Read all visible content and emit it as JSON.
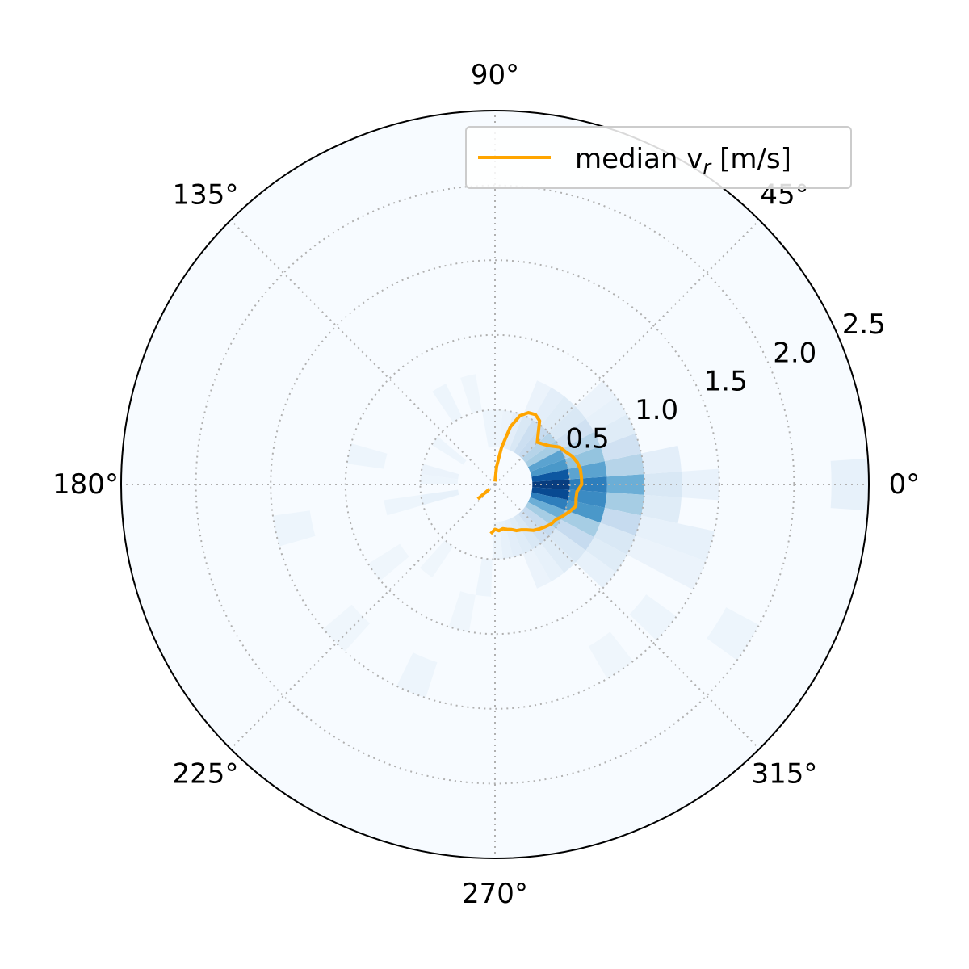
{
  "chart_data": {
    "type": "heatmap",
    "projection": "polar",
    "angle_ticks": [
      "0°",
      "45°",
      "90°",
      "135°",
      "180°",
      "225°",
      "270°",
      "315°"
    ],
    "angle_tick_values_deg": [
      0,
      45,
      90,
      135,
      180,
      225,
      270,
      315
    ],
    "radial_ticks": [
      "0.5",
      "1.0",
      "1.5",
      "2.0",
      "2.5"
    ],
    "radial_tick_values": [
      0.5,
      1.0,
      1.5,
      2.0,
      2.5
    ],
    "rlim": [
      0,
      2.5
    ],
    "grid": true,
    "legend": {
      "placement": "top-right",
      "entries": [
        "median v_r [m/s]"
      ]
    },
    "colormap": "Blues",
    "colors": {
      "background": "#f7fbff",
      "median_line": "#ffa500",
      "grid": "#b0b0b0"
    },
    "histogram_cells": [
      {
        "t0": -4,
        "t1": 4,
        "r0": 0.25,
        "r1": 0.5,
        "v": 0.95
      },
      {
        "t0": -4,
        "t1": 4,
        "r0": 0.5,
        "r1": 0.75,
        "v": 0.7
      },
      {
        "t0": -4,
        "t1": 4,
        "r0": 0.75,
        "r1": 1.0,
        "v": 0.5
      },
      {
        "t0": -4,
        "t1": 4,
        "r0": 1.0,
        "r1": 1.25,
        "v": 0.15
      },
      {
        "t0": 4,
        "t1": 12,
        "r0": 0.25,
        "r1": 0.5,
        "v": 0.85
      },
      {
        "t0": 4,
        "t1": 12,
        "r0": 0.5,
        "r1": 0.75,
        "v": 0.55
      },
      {
        "t0": 4,
        "t1": 12,
        "r0": 0.75,
        "r1": 1.0,
        "v": 0.3
      },
      {
        "t0": 4,
        "t1": 12,
        "r0": 1.0,
        "r1": 1.25,
        "v": 0.1
      },
      {
        "t0": 12,
        "t1": 20,
        "r0": 0.25,
        "r1": 0.5,
        "v": 0.6
      },
      {
        "t0": 12,
        "t1": 20,
        "r0": 0.5,
        "r1": 0.75,
        "v": 0.4
      },
      {
        "t0": 12,
        "t1": 20,
        "r0": 0.75,
        "r1": 1.0,
        "v": 0.2
      },
      {
        "t0": 20,
        "t1": 28,
        "r0": 0.25,
        "r1": 0.5,
        "v": 0.55
      },
      {
        "t0": 20,
        "t1": 28,
        "r0": 0.5,
        "r1": 0.75,
        "v": 0.3
      },
      {
        "t0": 20,
        "t1": 28,
        "r0": 0.75,
        "r1": 1.0,
        "v": 0.12
      },
      {
        "t0": 28,
        "t1": 36,
        "r0": 0.25,
        "r1": 0.5,
        "v": 0.35
      },
      {
        "t0": 28,
        "t1": 36,
        "r0": 0.5,
        "r1": 0.75,
        "v": 0.2
      },
      {
        "t0": 28,
        "t1": 36,
        "r0": 0.75,
        "r1": 1.0,
        "v": 0.08
      },
      {
        "t0": 36,
        "t1": 44,
        "r0": 0.25,
        "r1": 0.5,
        "v": 0.3
      },
      {
        "t0": 36,
        "t1": 44,
        "r0": 0.5,
        "r1": 0.75,
        "v": 0.15
      },
      {
        "t0": 36,
        "t1": 44,
        "r0": 0.75,
        "r1": 1.0,
        "v": 0.06
      },
      {
        "t0": 44,
        "t1": 52,
        "r0": 0.25,
        "r1": 0.5,
        "v": 0.25
      },
      {
        "t0": 44,
        "t1": 52,
        "r0": 0.5,
        "r1": 0.75,
        "v": 0.12
      },
      {
        "t0": 52,
        "t1": 60,
        "r0": 0.25,
        "r1": 0.5,
        "v": 0.22
      },
      {
        "t0": 52,
        "t1": 60,
        "r0": 0.5,
        "r1": 0.75,
        "v": 0.1
      },
      {
        "t0": 60,
        "t1": 68,
        "r0": 0.25,
        "r1": 0.5,
        "v": 0.15
      },
      {
        "t0": 60,
        "t1": 68,
        "r0": 0.5,
        "r1": 0.75,
        "v": 0.06
      },
      {
        "t0": 68,
        "t1": 76,
        "r0": 0.25,
        "r1": 0.5,
        "v": 0.1
      },
      {
        "t0": 76,
        "t1": 84,
        "r0": 0.25,
        "r1": 0.5,
        "v": 0.06
      },
      {
        "t0": 84,
        "t1": 92,
        "r0": 0.25,
        "r1": 0.5,
        "v": 0.05
      },
      {
        "t0": -12,
        "t1": -4,
        "r0": 0.25,
        "r1": 0.5,
        "v": 0.9
      },
      {
        "t0": -12,
        "t1": -4,
        "r0": 0.5,
        "r1": 0.75,
        "v": 0.65
      },
      {
        "t0": -12,
        "t1": -4,
        "r0": 0.75,
        "r1": 1.0,
        "v": 0.35
      },
      {
        "t0": -12,
        "t1": -4,
        "r0": 1.0,
        "r1": 1.25,
        "v": 0.12
      },
      {
        "t0": -20,
        "t1": -12,
        "r0": 0.25,
        "r1": 0.5,
        "v": 0.7
      },
      {
        "t0": -20,
        "t1": -12,
        "r0": 0.5,
        "r1": 0.75,
        "v": 0.6
      },
      {
        "t0": -20,
        "t1": -12,
        "r0": 0.75,
        "r1": 1.0,
        "v": 0.25
      },
      {
        "t0": -20,
        "t1": -12,
        "r0": 1.0,
        "r1": 1.5,
        "v": 0.08
      },
      {
        "t0": -28,
        "t1": -20,
        "r0": 0.25,
        "r1": 0.5,
        "v": 0.5
      },
      {
        "t0": -28,
        "t1": -20,
        "r0": 0.5,
        "r1": 0.75,
        "v": 0.35
      },
      {
        "t0": -28,
        "t1": -20,
        "r0": 0.75,
        "r1": 1.0,
        "v": 0.15
      },
      {
        "t0": -36,
        "t1": -28,
        "r0": 0.25,
        "r1": 0.5,
        "v": 0.35
      },
      {
        "t0": -36,
        "t1": -28,
        "r0": 0.5,
        "r1": 0.75,
        "v": 0.25
      },
      {
        "t0": -36,
        "t1": -28,
        "r0": 0.75,
        "r1": 1.0,
        "v": 0.12
      },
      {
        "t0": -44,
        "t1": -36,
        "r0": 0.25,
        "r1": 0.5,
        "v": 0.25
      },
      {
        "t0": -44,
        "t1": -36,
        "r0": 0.5,
        "r1": 0.75,
        "v": 0.15
      },
      {
        "t0": -44,
        "t1": -36,
        "r0": 0.75,
        "r1": 1.0,
        "v": 0.08
      },
      {
        "t0": -52,
        "t1": -44,
        "r0": 0.25,
        "r1": 0.5,
        "v": 0.2
      },
      {
        "t0": -52,
        "t1": -44,
        "r0": 0.5,
        "r1": 0.75,
        "v": 0.12
      },
      {
        "t0": -60,
        "t1": -52,
        "r0": 0.25,
        "r1": 0.5,
        "v": 0.15
      },
      {
        "t0": -60,
        "t1": -52,
        "r0": 0.5,
        "r1": 0.75,
        "v": 0.08
      },
      {
        "t0": -68,
        "t1": -60,
        "r0": 0.25,
        "r1": 0.5,
        "v": 0.12
      },
      {
        "t0": -68,
        "t1": -60,
        "r0": 0.5,
        "r1": 0.75,
        "v": 0.06
      },
      {
        "t0": -76,
        "t1": -68,
        "r0": 0.25,
        "r1": 0.5,
        "v": 0.1
      },
      {
        "t0": -84,
        "t1": -76,
        "r0": 0.25,
        "r1": 0.5,
        "v": 0.08
      },
      {
        "t0": -92,
        "t1": -84,
        "r0": 0.25,
        "r1": 0.5,
        "v": 0.05
      },
      {
        "t0": -4,
        "t1": 4,
        "r0": 1.25,
        "r1": 1.5,
        "v": 0.07
      },
      {
        "t0": -28,
        "t1": -20,
        "r0": 1.0,
        "r1": 1.5,
        "v": 0.06
      },
      {
        "t0": -44,
        "t1": -36,
        "r0": 1.25,
        "r1": 1.5,
        "v": 0.05
      },
      {
        "t0": -4,
        "t1": 4,
        "r0": 2.25,
        "r1": 2.5,
        "v": 0.08
      },
      {
        "t0": -36,
        "t1": -28,
        "r0": 1.75,
        "r1": 2.0,
        "v": 0.05
      },
      {
        "t0": -60,
        "t1": -52,
        "r0": 1.25,
        "r1": 1.5,
        "v": 0.04
      },
      {
        "t0": 92,
        "t1": 100,
        "r0": 0.25,
        "r1": 0.5,
        "v": 0.05
      },
      {
        "t0": 100,
        "t1": 108,
        "r0": 0.5,
        "r1": 0.75,
        "v": 0.04
      },
      {
        "t0": 116,
        "t1": 124,
        "r0": 0.5,
        "r1": 0.75,
        "v": 0.05
      },
      {
        "t0": 140,
        "t1": 148,
        "r0": 0.25,
        "r1": 0.5,
        "v": 0.05
      },
      {
        "t0": 164,
        "t1": 172,
        "r0": 0.25,
        "r1": 0.5,
        "v": 0.06
      },
      {
        "t0": 172,
        "t1": 180,
        "r0": 0.25,
        "r1": 0.5,
        "v": 0.05
      },
      {
        "t0": 188,
        "t1": 196,
        "r0": 0.25,
        "r1": 0.5,
        "v": 0.08
      },
      {
        "t0": 188,
        "t1": 196,
        "r0": 0.5,
        "r1": 0.75,
        "v": 0.05
      },
      {
        "t0": 164,
        "t1": 172,
        "r0": 0.75,
        "r1": 1.0,
        "v": 0.05
      },
      {
        "t0": 188,
        "t1": 196,
        "r0": 1.25,
        "r1": 1.5,
        "v": 0.05
      },
      {
        "t0": 212,
        "t1": 220,
        "r0": 0.75,
        "r1": 1.0,
        "v": 0.04
      },
      {
        "t0": 228,
        "t1": 236,
        "r0": 0.5,
        "r1": 0.75,
        "v": 0.04
      },
      {
        "t0": 220,
        "t1": 228,
        "r0": 1.25,
        "r1": 1.5,
        "v": 0.04
      },
      {
        "t0": 244,
        "t1": 252,
        "r0": 1.25,
        "r1": 1.5,
        "v": 0.05
      },
      {
        "t0": 260,
        "t1": 268,
        "r0": 0.5,
        "r1": 0.75,
        "v": 0.05
      },
      {
        "t0": 252,
        "t1": 260,
        "r0": 0.75,
        "r1": 1.0,
        "v": 0.04
      }
    ],
    "median_line": {
      "name": "median v_r [m/s]",
      "theta_deg": [
        90,
        85,
        80,
        75,
        70,
        65,
        60,
        55,
        50,
        45,
        40,
        35,
        30,
        25,
        20,
        15,
        10,
        5,
        0,
        -5,
        -10,
        -15,
        -20,
        -25,
        -30,
        -35,
        -40,
        -45,
        -50,
        -55,
        -60,
        -65,
        -70,
        -75,
        -80,
        -85,
        -90,
        -95,
        -100
      ],
      "r": [
        0.02,
        0.12,
        0.25,
        0.4,
        0.49,
        0.53,
        0.54,
        0.52,
        0.45,
        0.4,
        0.42,
        0.45,
        0.5,
        0.52,
        0.55,
        0.57,
        0.58,
        0.58,
        0.58,
        0.55,
        0.55,
        0.56,
        0.53,
        0.5,
        0.47,
        0.46,
        0.44,
        0.42,
        0.4,
        0.37,
        0.35,
        0.34,
        0.32,
        0.31,
        0.3,
        0.31,
        0.3,
        0.33,
        0.3
      ]
    }
  },
  "legend_label": "median v",
  "legend_subscript": "r",
  "legend_unit": " [m/s]"
}
